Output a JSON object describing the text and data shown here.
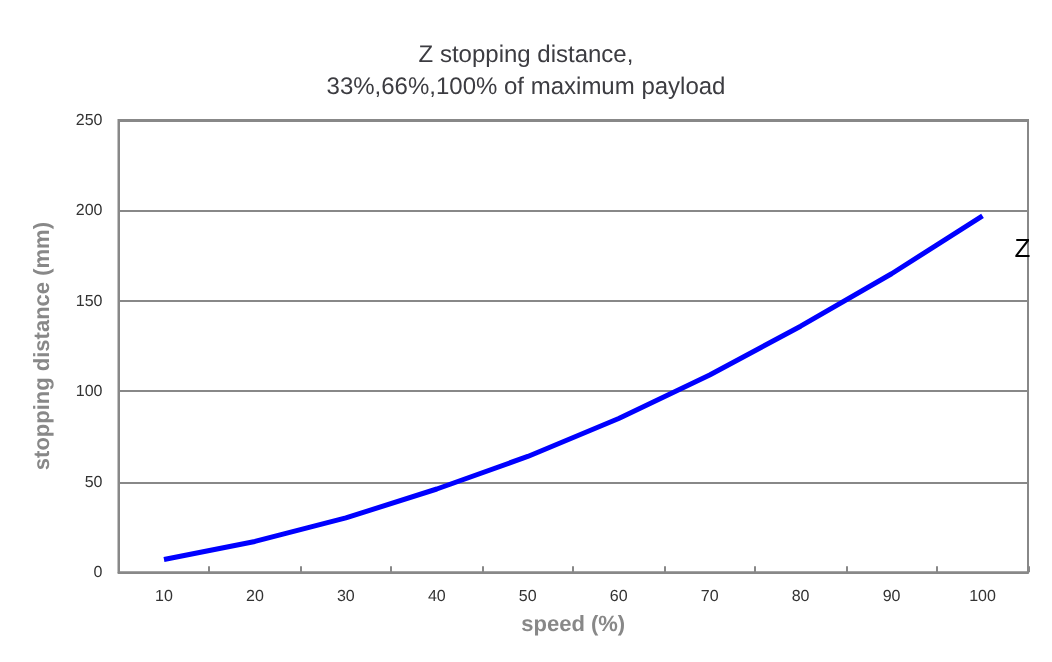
{
  "chart_data": {
    "type": "line",
    "title": "Z stopping distance,\n33%,66%,100% of maximum payload",
    "xlabel": "speed (%)",
    "ylabel": "stopping distance (mm)",
    "categories": [
      "10",
      "20",
      "30",
      "40",
      "50",
      "60",
      "70",
      "80",
      "90",
      "100"
    ],
    "series": [
      {
        "name": "Z",
        "color": "#0000ff",
        "values": [
          7,
          17,
          30,
          46,
          64,
          85,
          109,
          136,
          165,
          197
        ]
      }
    ],
    "ylim": [
      0,
      250
    ],
    "yticks": [
      0,
      50,
      100,
      150,
      200,
      250
    ],
    "grid": "y",
    "legend": false,
    "marker": "none",
    "line_style": "solid"
  }
}
